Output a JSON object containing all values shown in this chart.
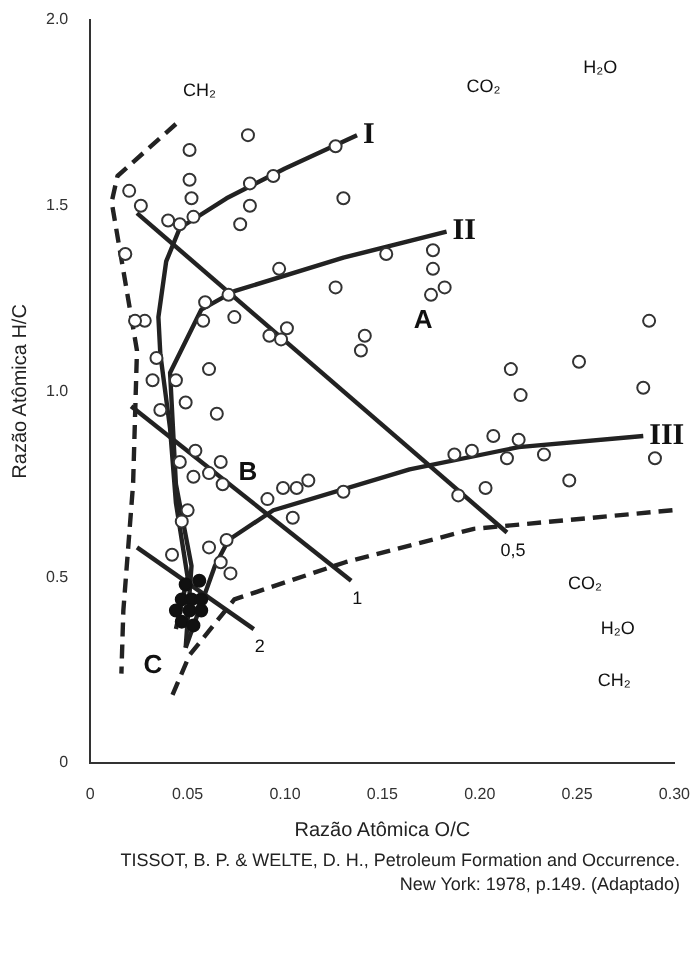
{
  "chart_data": {
    "type": "scatter",
    "xlabel": "Razão Atômica O/C",
    "ylabel": "Razão Atômica H/C",
    "xlim": [
      0,
      0.3
    ],
    "ylim": [
      0,
      2.0
    ],
    "xticks": [
      0,
      0.05,
      {
        "value": 0.1,
        "label": "0.10"
      },
      0.15,
      {
        "value": 0.2,
        "label": "0.20"
      },
      0.25,
      {
        "value": 0.3,
        "label": "0.30"
      }
    ],
    "yticks": [
      0,
      0.5,
      {
        "value": 1,
        "label": "1.0"
      },
      1.5,
      {
        "value": 2,
        "label": "2.0"
      }
    ],
    "grid": false,
    "legend": false,
    "series": [
      {
        "marker": "circle",
        "color": "#333333",
        "x": [
          0.081,
          0.126,
          0.051,
          0.051,
          0.094,
          0.082,
          0.052,
          0.13,
          0.02,
          0.026,
          0.04,
          0.046,
          0.053,
          0.082,
          0.077,
          0.018,
          0.097,
          0.126,
          0.152,
          0.176,
          0.176,
          0.182,
          0.175,
          0.071,
          0.059,
          0.058,
          0.074,
          0.101,
          0.092,
          0.098,
          0.141,
          0.139,
          0.287,
          0.251,
          0.216,
          0.028,
          0.023,
          0.034,
          0.032,
          0.044,
          0.061,
          0.049,
          0.036,
          0.065,
          0.284,
          0.221,
          0.046,
          0.054,
          0.061,
          0.067,
          0.053,
          0.068,
          0.099,
          0.106,
          0.112,
          0.13,
          0.091,
          0.104,
          0.187,
          0.196,
          0.207,
          0.22,
          0.214,
          0.233,
          0.189,
          0.203,
          0.246,
          0.29,
          0.05,
          0.047,
          0.042,
          0.061,
          0.07,
          0.067,
          0.072
        ],
        "values": [
          1.69,
          1.66,
          1.65,
          1.57,
          1.58,
          1.56,
          1.52,
          1.52,
          1.54,
          1.5,
          1.46,
          1.45,
          1.47,
          1.5,
          1.45,
          1.37,
          1.33,
          1.28,
          1.37,
          1.38,
          1.33,
          1.28,
          1.26,
          1.26,
          1.24,
          1.19,
          1.2,
          1.17,
          1.15,
          1.14,
          1.15,
          1.11,
          1.19,
          1.08,
          1.06,
          1.19,
          1.19,
          1.09,
          1.03,
          1.03,
          1.06,
          0.97,
          0.95,
          0.94,
          1.01,
          0.99,
          0.81,
          0.84,
          0.78,
          0.81,
          0.77,
          0.75,
          0.74,
          0.74,
          0.76,
          0.73,
          0.71,
          0.66,
          0.83,
          0.84,
          0.88,
          0.87,
          0.82,
          0.83,
          0.72,
          0.74,
          0.76,
          0.82,
          0.68,
          0.65,
          0.56,
          0.58,
          0.6,
          0.54,
          0.51
        ]
      },
      {
        "marker": "circle",
        "color": "#111111",
        "x": [
          0.049,
          0.056,
          0.047,
          0.052,
          0.057,
          0.044,
          0.051,
          0.057,
          0.047,
          0.053
        ],
        "values": [
          0.48,
          0.49,
          0.44,
          0.44,
          0.44,
          0.41,
          0.41,
          0.41,
          0.38,
          0.37
        ]
      },
      {
        "type": "line",
        "name": "I",
        "color": "#222222",
        "line_style": "solid",
        "x": [
          0.137,
          0.1,
          0.07,
          0.046,
          0.039,
          0.035,
          0.036,
          0.041,
          0.044,
          0.05,
          0.044
        ],
        "values": [
          1.69,
          1.6,
          1.52,
          1.44,
          1.35,
          1.2,
          1.1,
          0.9,
          0.7,
          0.5,
          0.36
        ]
      },
      {
        "type": "line",
        "name": "II",
        "color": "#222222",
        "line_style": "solid",
        "x": [
          0.183,
          0.13,
          0.074,
          0.057,
          0.041,
          0.044,
          0.052,
          0.049
        ],
        "values": [
          1.43,
          1.36,
          1.27,
          1.22,
          1.05,
          0.75,
          0.53,
          0.31
        ]
      },
      {
        "type": "line",
        "name": "III",
        "color": "#222222",
        "line_style": "solid",
        "x": [
          0.284,
          0.22,
          0.164,
          0.094,
          0.071,
          0.064,
          0.049
        ],
        "values": [
          0.88,
          0.85,
          0.79,
          0.68,
          0.6,
          0.53,
          0.31
        ]
      },
      {
        "type": "line",
        "color": "#222222",
        "line_style": "dashed",
        "x": [
          0.044,
          0.014,
          0.011,
          0.024,
          0.022,
          0.017,
          0.016
        ],
        "values": [
          1.72,
          1.58,
          1.51,
          1.11,
          0.75,
          0.41,
          0.24
        ]
      },
      {
        "type": "line",
        "color": "#222222",
        "line_style": "dashed",
        "x": [
          0.299,
          0.197,
          0.131,
          0.074,
          0.051,
          0.042
        ],
        "values": [
          0.68,
          0.63,
          0.54,
          0.44,
          0.29,
          0.18
        ]
      },
      {
        "type": "line",
        "name": "0,5",
        "color": "#222222",
        "line_style": "solid",
        "x": [
          0.024,
          0.214
        ],
        "values": [
          1.48,
          0.62
        ]
      },
      {
        "type": "line",
        "name": "1",
        "color": "#222222",
        "line_style": "solid",
        "x": [
          0.021,
          0.134
        ],
        "values": [
          0.96,
          0.49
        ]
      },
      {
        "type": "line",
        "name": "2",
        "color": "#222222",
        "line_style": "solid",
        "x": [
          0.024,
          0.084
        ],
        "values": [
          0.58,
          0.36
        ]
      }
    ],
    "annotations": [
      "A",
      "B",
      "C",
      "CO₂",
      "H₂O",
      "CH₂",
      "CO₂",
      "H₂O",
      "CH₂",
      "TISSOT, B. P. & WELTE, D. H., Petroleum Formation and Occurrence. New York: 1978, p.149. (Adaptado)"
    ]
  }
}
